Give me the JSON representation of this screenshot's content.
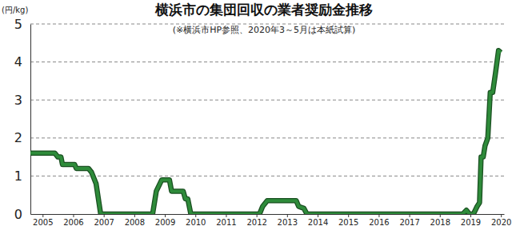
{
  "chart_data": {
    "type": "line",
    "title": "横浜市の集団回収の業者奨励金推移",
    "subtitle": "(※横浜市HP参照、2020年3～5月は本紙試算)",
    "y_label": "(円/kg)",
    "x": [
      2004.6,
      2005.4,
      2005.5,
      2005.6,
      2005.65,
      2006.05,
      2006.1,
      2006.5,
      2006.6,
      2006.75,
      2006.9,
      2008.6,
      2008.72,
      2008.9,
      2009.15,
      2009.22,
      2009.6,
      2009.67,
      2009.75,
      2009.85,
      2012.1,
      2012.2,
      2012.35,
      2013.3,
      2013.38,
      2013.55,
      2013.65,
      2018.75,
      2018.87,
      2018.97,
      2019.1,
      2019.22,
      2019.3,
      2019.35,
      2019.42,
      2019.48,
      2019.57,
      2019.65,
      2019.73,
      2019.82,
      2019.92,
      2020.0
    ],
    "values": [
      1.6,
      1.6,
      1.5,
      1.5,
      1.3,
      1.3,
      1.2,
      1.2,
      1.1,
      0.8,
      0,
      0,
      0.6,
      0.9,
      0.9,
      0.6,
      0.6,
      0.4,
      0.4,
      0,
      0,
      0.2,
      0.35,
      0.35,
      0.2,
      0.15,
      0,
      0,
      0.1,
      0,
      0,
      0.2,
      0.3,
      1.5,
      1.5,
      1.8,
      2.0,
      3.2,
      3.2,
      3.7,
      4.3,
      4.25
    ],
    "color": "#2e8b3a",
    "xlim": [
      2004.6,
      2020.1
    ],
    "xticks": [
      2005,
      2006,
      2007,
      2008,
      2009,
      2010,
      2011,
      2012,
      2013,
      2014,
      2015,
      2016,
      2017,
      2018,
      2019,
      2020
    ],
    "ylim": [
      0,
      5
    ],
    "yticks": [
      0,
      1,
      2,
      3,
      4,
      5
    ],
    "grid": true
  }
}
